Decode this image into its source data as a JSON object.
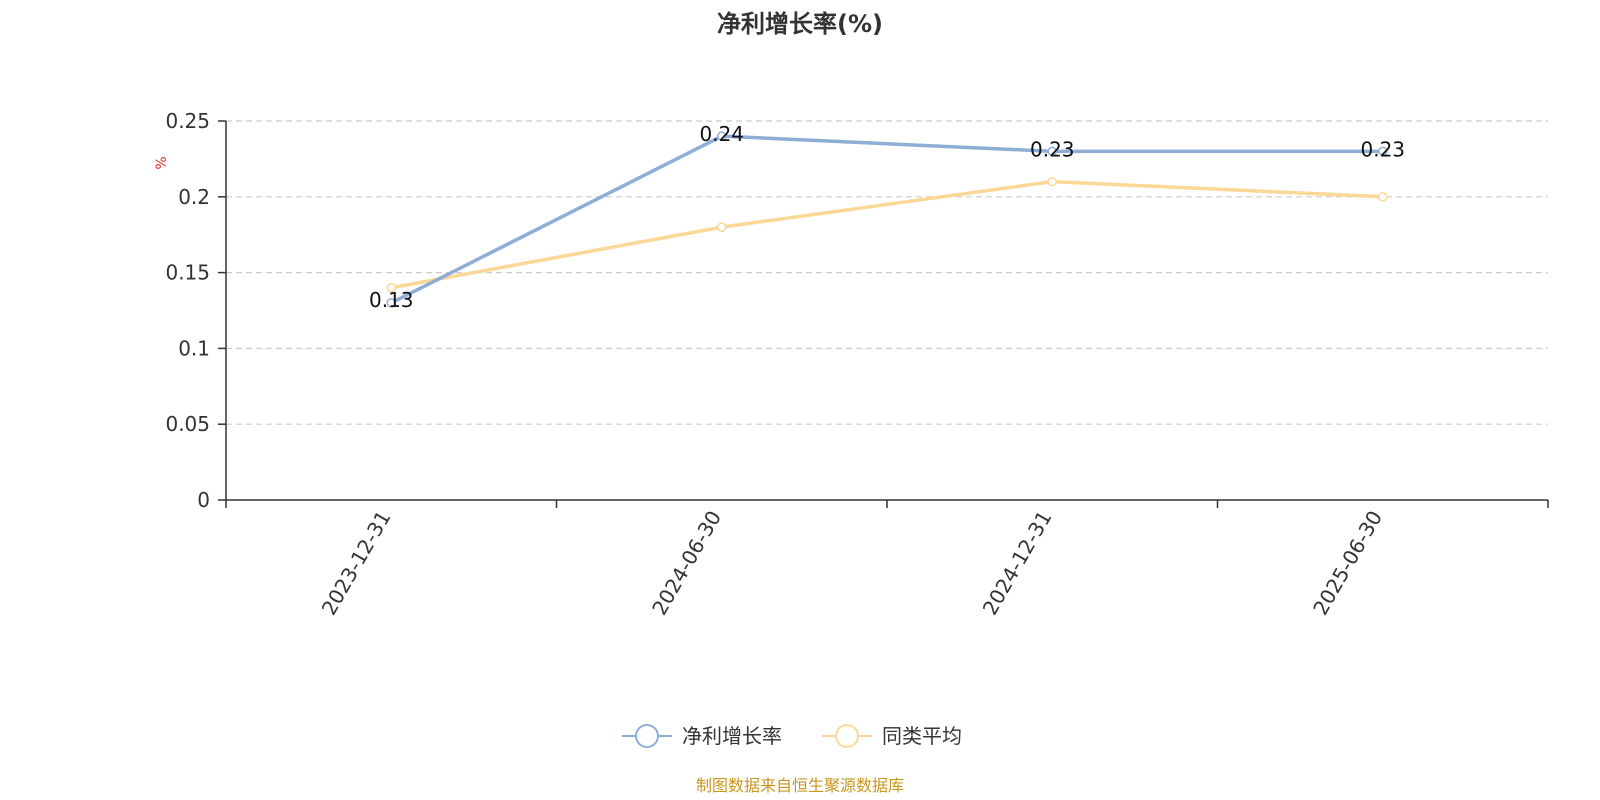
{
  "chart_data": {
    "type": "line",
    "title": "净利增长率(%)",
    "ylabel": "%",
    "categories": [
      "2023-12-31",
      "2024-06-30",
      "2024-12-31",
      "2025-06-30"
    ],
    "ylim": [
      0,
      0.25
    ],
    "yticks": [
      "0",
      "0.05",
      "0.1",
      "0.15",
      "0.2",
      "0.25"
    ],
    "grid": true,
    "legend_position": "bottom-center",
    "series": [
      {
        "name": "净利增长率",
        "values": [
          0.13,
          0.24,
          0.23,
          0.23
        ],
        "color": "#8eaed8",
        "labels": [
          "0.13",
          "0.24",
          "0.23",
          "0.23"
        ]
      },
      {
        "name": "同类平均",
        "values": [
          0.14,
          0.18,
          0.21,
          0.2
        ],
        "color": "#fbd897"
      }
    ]
  },
  "source_note": "制图数据来自恒生聚源数据库",
  "colors": {
    "unit_label": "#e0302b",
    "source_note": "#c8961e",
    "axis": "#333333",
    "grid": "#cccccc"
  }
}
